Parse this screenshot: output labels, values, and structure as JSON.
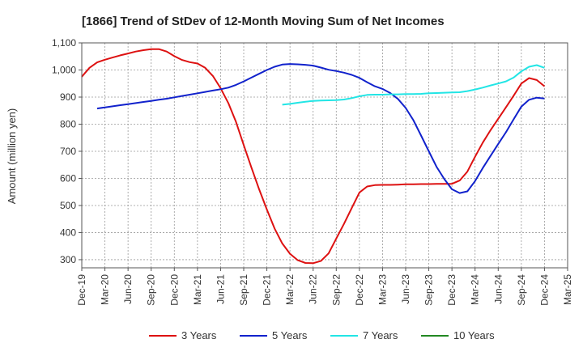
{
  "chart_data": {
    "type": "line",
    "title": "[1866]  Trend of StDev of 12-Month Moving Sum of Net Incomes",
    "ylabel": "Amount (million yen)",
    "xlabel": "",
    "ylim": [
      270,
      1100
    ],
    "y_ticks": [
      300,
      400,
      500,
      600,
      700,
      800,
      900,
      1000,
      1100
    ],
    "y_tick_labels": [
      "300",
      "400",
      "500",
      "600",
      "700",
      "800",
      "900",
      "1,000",
      "1,100"
    ],
    "x_ticks": [
      "Dec-19",
      "Mar-20",
      "Jun-20",
      "Sep-20",
      "Dec-20",
      "Mar-21",
      "Jun-21",
      "Sep-21",
      "Dec-21",
      "Mar-22",
      "Jun-22",
      "Sep-22",
      "Dec-22",
      "Mar-23",
      "Jun-23",
      "Sep-23",
      "Dec-23",
      "Mar-24",
      "Jun-24",
      "Sep-24",
      "Dec-24",
      "Mar-25"
    ],
    "grid": true,
    "legend_position": "bottom",
    "series": [
      {
        "name": "3 Years",
        "color": "#dd1111",
        "points": [
          [
            "2019-12",
            975
          ],
          [
            "2020-01",
            1008
          ],
          [
            "2020-02",
            1028
          ],
          [
            "2020-03",
            1038
          ],
          [
            "2020-04",
            1046
          ],
          [
            "2020-05",
            1054
          ],
          [
            "2020-06",
            1061
          ],
          [
            "2020-07",
            1068
          ],
          [
            "2020-08",
            1073
          ],
          [
            "2020-09",
            1077
          ],
          [
            "2020-10",
            1077
          ],
          [
            "2020-11",
            1068
          ],
          [
            "2020-12",
            1051
          ],
          [
            "2021-01",
            1037
          ],
          [
            "2021-02",
            1029
          ],
          [
            "2021-03",
            1024
          ],
          [
            "2021-04",
            1008
          ],
          [
            "2021-05",
            978
          ],
          [
            "2021-06",
            933
          ],
          [
            "2021-07",
            878
          ],
          [
            "2021-08",
            808
          ],
          [
            "2021-09",
            723
          ],
          [
            "2021-10",
            640
          ],
          [
            "2021-11",
            560
          ],
          [
            "2021-12",
            485
          ],
          [
            "2022-01",
            415
          ],
          [
            "2022-02",
            360
          ],
          [
            "2022-03",
            322
          ],
          [
            "2022-04",
            298
          ],
          [
            "2022-05",
            288
          ],
          [
            "2022-06",
            287
          ],
          [
            "2022-07",
            295
          ],
          [
            "2022-08",
            323
          ],
          [
            "2022-09",
            378
          ],
          [
            "2022-10",
            432
          ],
          [
            "2022-11",
            490
          ],
          [
            "2022-12",
            548
          ],
          [
            "2023-01",
            570
          ],
          [
            "2023-02",
            575
          ],
          [
            "2023-03",
            576
          ],
          [
            "2023-04",
            576
          ],
          [
            "2023-05",
            577
          ],
          [
            "2023-06",
            578
          ],
          [
            "2023-07",
            578
          ],
          [
            "2023-08",
            579
          ],
          [
            "2023-09",
            579
          ],
          [
            "2023-10",
            580
          ],
          [
            "2023-11",
            580
          ],
          [
            "2023-12",
            580
          ],
          [
            "2024-01",
            592
          ],
          [
            "2024-02",
            625
          ],
          [
            "2024-03",
            680
          ],
          [
            "2024-04",
            732
          ],
          [
            "2024-05",
            778
          ],
          [
            "2024-06",
            820
          ],
          [
            "2024-07",
            862
          ],
          [
            "2024-08",
            905
          ],
          [
            "2024-09",
            950
          ],
          [
            "2024-10",
            970
          ],
          [
            "2024-11",
            963
          ],
          [
            "2024-12",
            940
          ]
        ]
      },
      {
        "name": "5 Years",
        "color": "#1122cc",
        "points": [
          [
            "2020-02",
            858
          ],
          [
            "2020-03",
            862
          ],
          [
            "2020-04",
            866
          ],
          [
            "2020-05",
            870
          ],
          [
            "2020-06",
            874
          ],
          [
            "2020-07",
            878
          ],
          [
            "2020-08",
            882
          ],
          [
            "2020-09",
            886
          ],
          [
            "2020-10",
            890
          ],
          [
            "2020-11",
            894
          ],
          [
            "2020-12",
            899
          ],
          [
            "2021-01",
            904
          ],
          [
            "2021-02",
            909
          ],
          [
            "2021-03",
            914
          ],
          [
            "2021-04",
            919
          ],
          [
            "2021-05",
            924
          ],
          [
            "2021-06",
            929
          ],
          [
            "2021-07",
            935
          ],
          [
            "2021-08",
            945
          ],
          [
            "2021-09",
            958
          ],
          [
            "2021-10",
            972
          ],
          [
            "2021-11",
            986
          ],
          [
            "2021-12",
            1000
          ],
          [
            "2022-01",
            1012
          ],
          [
            "2022-02",
            1020
          ],
          [
            "2022-03",
            1022
          ],
          [
            "2022-04",
            1021
          ],
          [
            "2022-05",
            1019
          ],
          [
            "2022-06",
            1016
          ],
          [
            "2022-07",
            1009
          ],
          [
            "2022-08",
            1001
          ],
          [
            "2022-09",
            996
          ],
          [
            "2022-10",
            990
          ],
          [
            "2022-11",
            982
          ],
          [
            "2022-12",
            971
          ],
          [
            "2023-01",
            955
          ],
          [
            "2023-02",
            940
          ],
          [
            "2023-03",
            930
          ],
          [
            "2023-04",
            915
          ],
          [
            "2023-05",
            893
          ],
          [
            "2023-06",
            860
          ],
          [
            "2023-07",
            815
          ],
          [
            "2023-08",
            758
          ],
          [
            "2023-09",
            700
          ],
          [
            "2023-10",
            643
          ],
          [
            "2023-11",
            598
          ],
          [
            "2023-12",
            560
          ],
          [
            "2024-01",
            546
          ],
          [
            "2024-02",
            552
          ],
          [
            "2024-03",
            590
          ],
          [
            "2024-04",
            638
          ],
          [
            "2024-05",
            683
          ],
          [
            "2024-06",
            727
          ],
          [
            "2024-07",
            770
          ],
          [
            "2024-08",
            818
          ],
          [
            "2024-09",
            865
          ],
          [
            "2024-10",
            890
          ],
          [
            "2024-11",
            898
          ],
          [
            "2024-12",
            895
          ]
        ]
      },
      {
        "name": "7 Years",
        "color": "#22e5e5",
        "points": [
          [
            "2022-02",
            872
          ],
          [
            "2022-03",
            875
          ],
          [
            "2022-04",
            879
          ],
          [
            "2022-05",
            883
          ],
          [
            "2022-06",
            886
          ],
          [
            "2022-07",
            887
          ],
          [
            "2022-08",
            888
          ],
          [
            "2022-09",
            889
          ],
          [
            "2022-10",
            891
          ],
          [
            "2022-11",
            896
          ],
          [
            "2022-12",
            903
          ],
          [
            "2023-01",
            908
          ],
          [
            "2023-02",
            909
          ],
          [
            "2023-03",
            909
          ],
          [
            "2023-04",
            910
          ],
          [
            "2023-05",
            910
          ],
          [
            "2023-06",
            911
          ],
          [
            "2023-07",
            911
          ],
          [
            "2023-08",
            912
          ],
          [
            "2023-09",
            914
          ],
          [
            "2023-10",
            915
          ],
          [
            "2023-11",
            916
          ],
          [
            "2023-12",
            917
          ],
          [
            "2024-01",
            918
          ],
          [
            "2024-02",
            922
          ],
          [
            "2024-03",
            928
          ],
          [
            "2024-04",
            935
          ],
          [
            "2024-05",
            943
          ],
          [
            "2024-06",
            950
          ],
          [
            "2024-07",
            958
          ],
          [
            "2024-08",
            972
          ],
          [
            "2024-09",
            995
          ],
          [
            "2024-10",
            1012
          ],
          [
            "2024-11",
            1018
          ],
          [
            "2024-12",
            1008
          ]
        ]
      },
      {
        "name": "10 Years",
        "color": "#228822",
        "points": []
      }
    ]
  }
}
